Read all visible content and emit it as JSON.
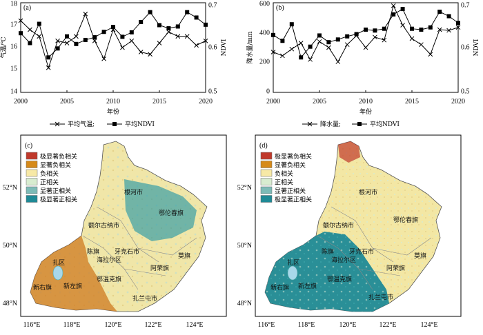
{
  "chart_data": [
    {
      "type": "line",
      "panel": "(a)",
      "xlabel": "年份",
      "ylabel": "气温/℃",
      "ylabel_right": "NDVI",
      "xlim": [
        2000,
        2020
      ],
      "ylim": [
        14,
        18
      ],
      "ylim_right": [
        0.5,
        0.7
      ],
      "x_ticks": [
        "2000",
        "2005",
        "2010",
        "2015",
        "2020"
      ],
      "y_ticks": [
        "14",
        "15",
        "16",
        "17",
        "18"
      ],
      "y_ticks_right": [
        "0.5",
        "0.6",
        "0.7"
      ],
      "x": [
        2000,
        2001,
        2002,
        2003,
        2004,
        2005,
        2006,
        2007,
        2008,
        2009,
        2010,
        2011,
        2012,
        2013,
        2014,
        2015,
        2016,
        2017,
        2018,
        2019,
        2020
      ],
      "series": [
        {
          "name": "平均气温",
          "marker": "x",
          "axis": "left",
          "values": [
            17.2,
            16.8,
            16.5,
            15.1,
            16.3,
            16.2,
            16.5,
            17.5,
            16.3,
            15.5,
            16.8,
            16.0,
            16.3,
            15.8,
            15.7,
            16.2,
            16.7,
            16.5,
            16.5,
            16.1,
            16.3
          ]
        },
        {
          "name": "平均NDVI",
          "marker": "square",
          "axis": "right",
          "values": [
            0.632,
            0.61,
            0.653,
            0.578,
            0.598,
            0.625,
            0.608,
            0.617,
            0.623,
            0.635,
            0.646,
            0.624,
            0.634,
            0.657,
            0.679,
            0.65,
            0.643,
            0.647,
            0.679,
            0.667,
            0.651
          ]
        }
      ],
      "legend": "bottom"
    },
    {
      "type": "line",
      "panel": "(b)",
      "xlabel": "年份",
      "ylabel": "降水量/mm",
      "ylabel_right": "NDVI",
      "xlim": [
        2000,
        2020
      ],
      "ylim": [
        0,
        600
      ],
      "ylim_right": [
        0.5,
        0.7
      ],
      "x_ticks": [
        "2000",
        "2005",
        "2010",
        "2015",
        "2020"
      ],
      "y_ticks": [
        "0",
        "200",
        "400",
        "600"
      ],
      "y_ticks_right": [
        "0.5",
        "0.6",
        "0.7"
      ],
      "x": [
        2000,
        2001,
        2002,
        2003,
        2004,
        2005,
        2006,
        2007,
        2008,
        2009,
        2010,
        2011,
        2012,
        2013,
        2014,
        2015,
        2016,
        2017,
        2018,
        2019,
        2020
      ],
      "series": [
        {
          "name": "降水量",
          "marker": "x",
          "axis": "left",
          "values": [
            270,
            245,
            290,
            330,
            220,
            340,
            300,
            205,
            320,
            380,
            300,
            370,
            350,
            580,
            450,
            360,
            320,
            255,
            420,
            415,
            435
          ]
        },
        {
          "name": "平均NDVI",
          "marker": "square",
          "axis": "right",
          "values": [
            0.628,
            0.615,
            0.652,
            0.578,
            0.602,
            0.627,
            0.612,
            0.618,
            0.625,
            0.63,
            0.64,
            0.638,
            0.642,
            0.674,
            0.686,
            0.642,
            0.64,
            0.645,
            0.68,
            0.67,
            0.655
          ]
        }
      ],
      "legend": "bottom"
    }
  ],
  "legend_a": {
    "temp": "平均气温;",
    "ndvi": "平均NDVI"
  },
  "legend_b": {
    "rain": "降水量;",
    "ndvi": "平均NDVI"
  },
  "maps": [
    {
      "panel": "(c)"
    },
    {
      "panel": "(d)"
    }
  ],
  "map_legend": [
    {
      "label": "极显著负相关",
      "color": "#c0392b"
    },
    {
      "label": "显著负相关",
      "color": "#d68a1a"
    },
    {
      "label": "负相关",
      "color": "#f7e9a6"
    },
    {
      "label": "正相关",
      "color": "#d8ecd0"
    },
    {
      "label": "显著正相关",
      "color": "#7dbbb7"
    },
    {
      "label": "极显著正相关",
      "color": "#1f8a96"
    }
  ],
  "map_lat_ticks": [
    "52°N",
    "50°N",
    "48°N"
  ],
  "map_lon_ticks": [
    "116°E",
    "118°E",
    "120°E",
    "122°E",
    "124°E"
  ],
  "map_places": {
    "genhe": "根河市",
    "eerguna": "额尔古纳市",
    "elunchun": "鄂伦春旗",
    "chenqi": "陈旗",
    "yakeshi": "牙克石市",
    "hailaer": "海拉尔区",
    "moqi": "莫旗",
    "arong": "阿荣旗",
    "zhaqu": "扎区",
    "xinyou": "新右旗",
    "xinzuo": "新左旗",
    "ewenke": "鄂温克旗",
    "zhalantun": "扎兰屯市"
  }
}
